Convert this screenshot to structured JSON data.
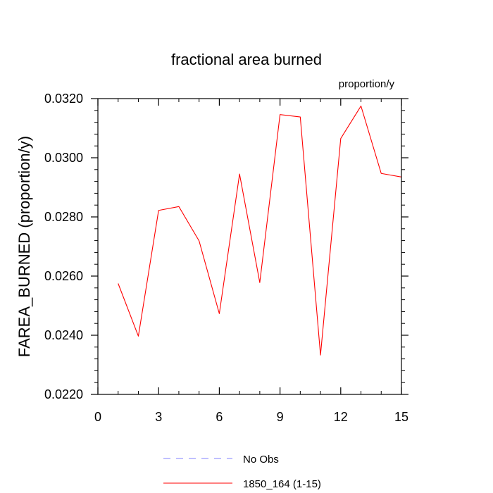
{
  "chart_data": {
    "type": "line",
    "title": "fractional area burned",
    "units_label": "proportion/y",
    "ylabel": "FAREA_BURNED  (proportion/y)",
    "xlabel": "",
    "xlim": [
      0,
      15
    ],
    "ylim": [
      0.022,
      0.032
    ],
    "xticks": [
      0,
      3,
      6,
      9,
      12,
      15
    ],
    "xtick_labels": [
      "0",
      "3",
      "6",
      "9",
      "12",
      "15"
    ],
    "yticks": [
      0.022,
      0.024,
      0.026,
      0.028,
      0.03,
      0.032
    ],
    "ytick_labels": [
      "0.0220",
      "0.0240",
      "0.0260",
      "0.0280",
      "0.0300",
      "0.0320"
    ],
    "grid": false,
    "legend_position": "bottom-center",
    "series": [
      {
        "name": "1850_164 (1-15)",
        "color": "#ff0000",
        "x": [
          1,
          2,
          3,
          4,
          5,
          6,
          7,
          8,
          9,
          10,
          11,
          12,
          13,
          14,
          15
        ],
        "values": [
          0.02575,
          0.02397,
          0.02822,
          0.02835,
          0.02719,
          0.02473,
          0.02945,
          0.02578,
          0.03146,
          0.03138,
          0.02333,
          0.03065,
          0.03175,
          0.02947,
          0.02935
        ]
      }
    ],
    "legend": [
      {
        "label": "No Obs",
        "color": "#8080ff",
        "style": "dashed"
      },
      {
        "label": "1850_164 (1-15)",
        "color": "#ff0000",
        "style": "solid"
      }
    ]
  }
}
